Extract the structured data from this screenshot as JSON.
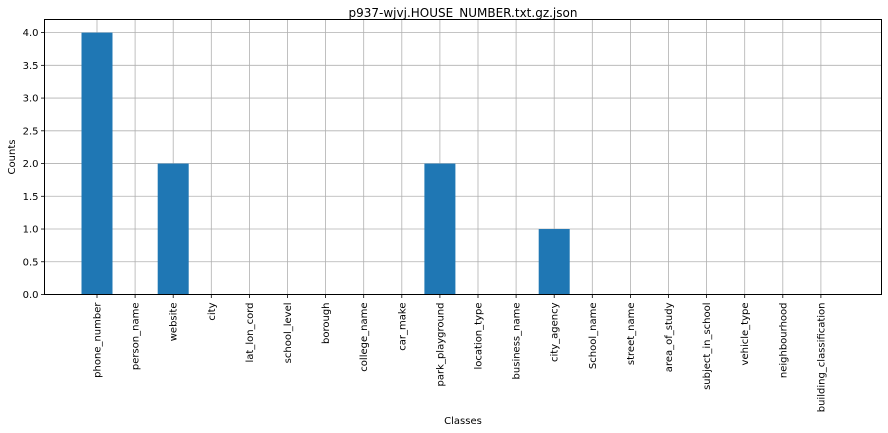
{
  "chart_data": {
    "type": "bar",
    "title": "p937-wjvj.HOUSE_NUMBER.txt.gz.json",
    "xlabel": "Classes",
    "ylabel": "Counts",
    "ylim": [
      0,
      4.2
    ],
    "yticks": [
      "0.0",
      "0.5",
      "1.0",
      "1.5",
      "2.0",
      "2.5",
      "3.0",
      "3.5",
      "4.0"
    ],
    "grid": true,
    "bar_color": "#1f77b4",
    "categories": [
      "phone_number",
      "person_name",
      "website",
      "city",
      "lat_lon_cord",
      "school_level",
      "borough",
      "college_name",
      "car_make",
      "park_playground",
      "location_type",
      "business_name",
      "city_agency",
      "School_name",
      "street_name",
      "area_of_study",
      "subject_in_school",
      "vehicle_type",
      "neighbourhood",
      "building_classification"
    ],
    "values": [
      4,
      0,
      2,
      0,
      0,
      0,
      0,
      0,
      0,
      2,
      0,
      0,
      1,
      0,
      0,
      0,
      0,
      0,
      0,
      0
    ]
  }
}
